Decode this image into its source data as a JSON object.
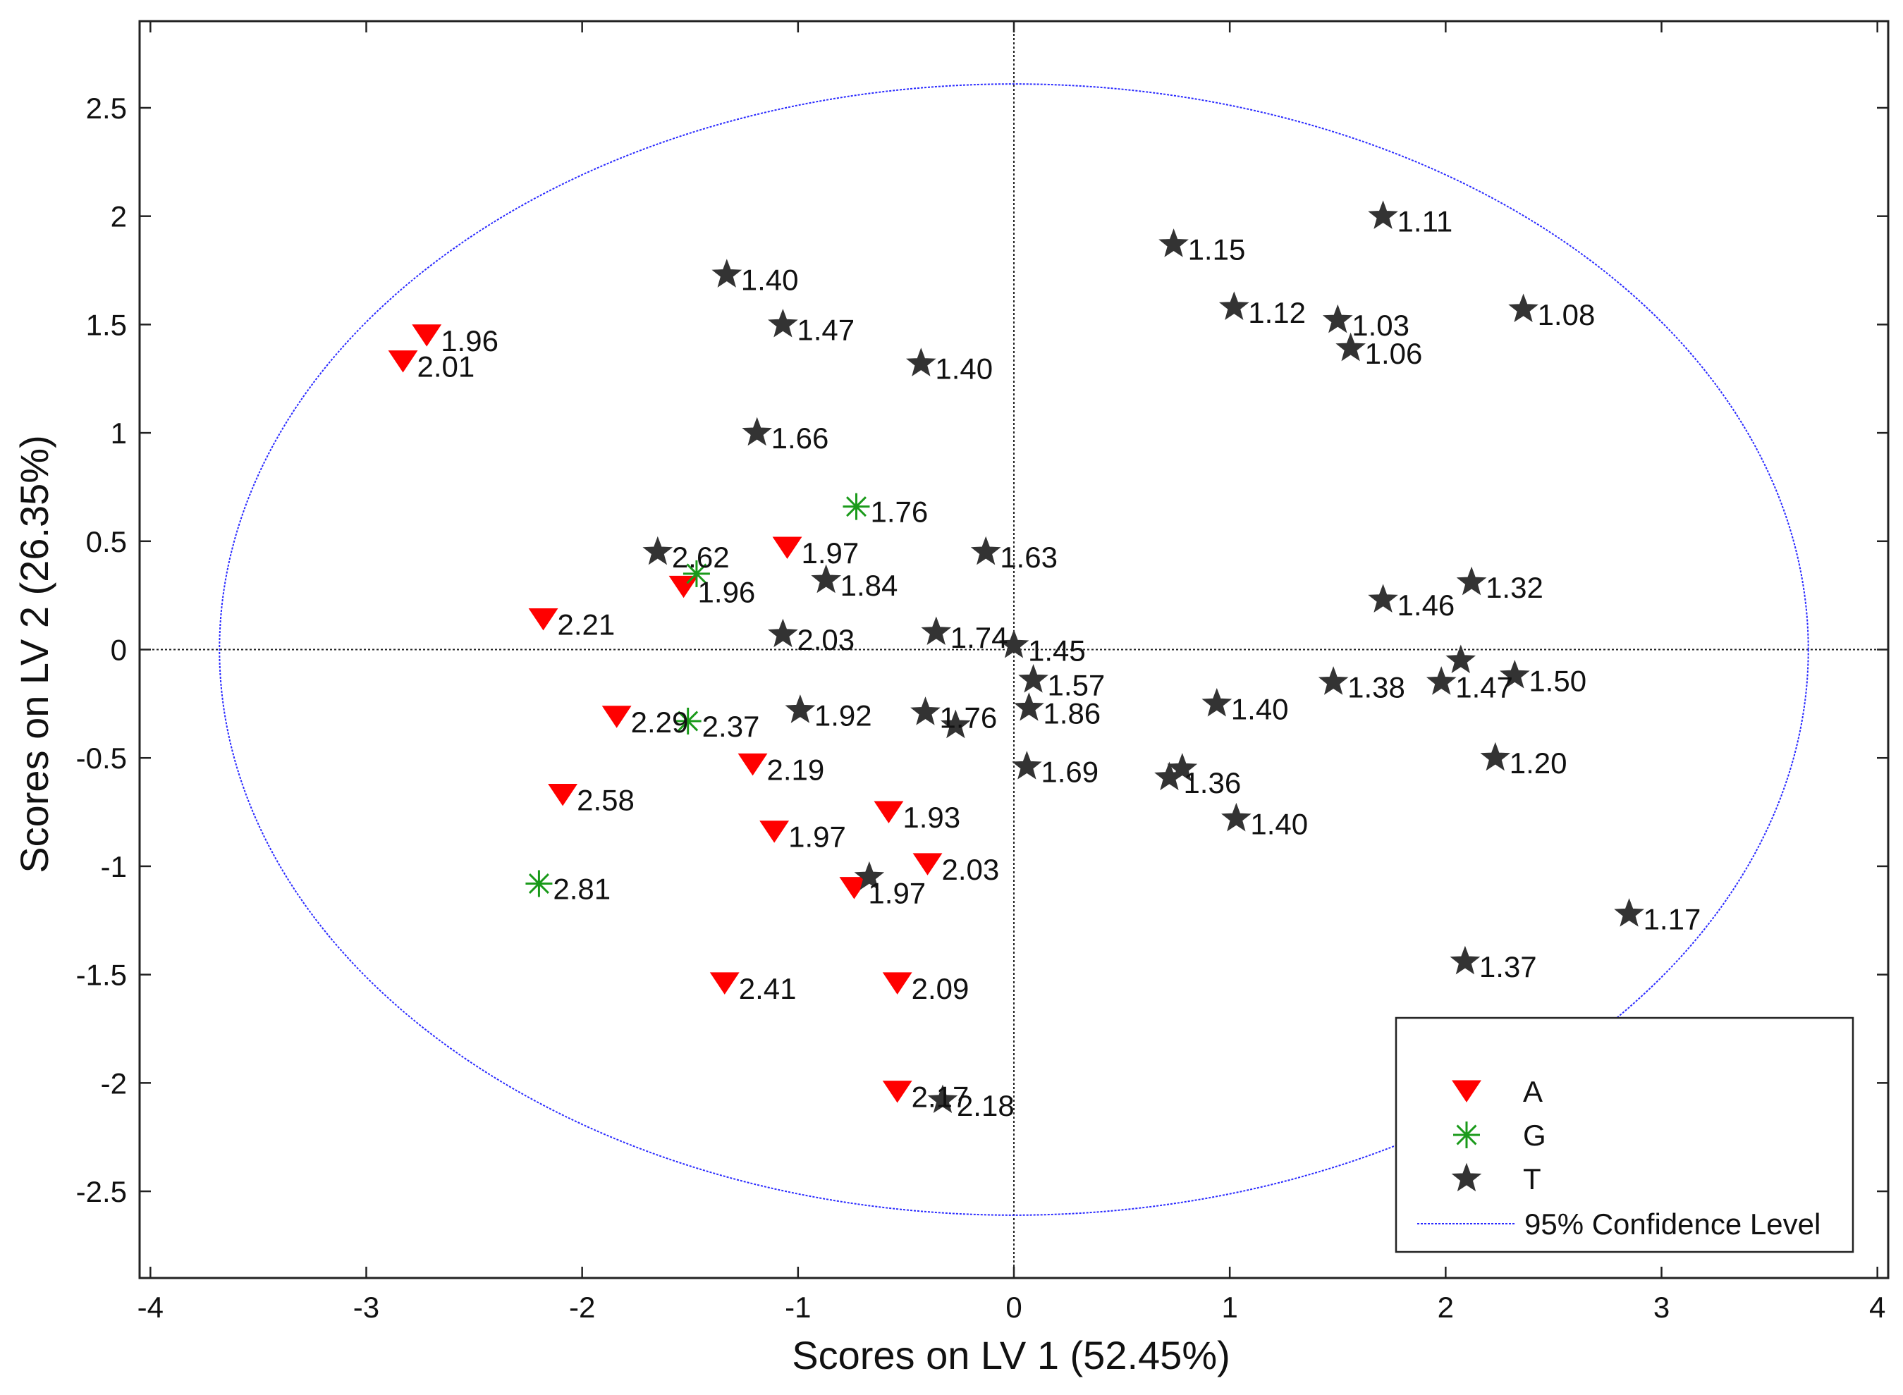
{
  "chart_data": {
    "type": "scatter",
    "xlabel": "Scores on LV 1 (52.45%)",
    "ylabel": "Scores on LV 2 (26.35%)",
    "xlim": [
      -4.05,
      4.05
    ],
    "ylim": [
      -2.9,
      2.9
    ],
    "xticks": [
      -4,
      -3,
      -2,
      -1,
      0,
      1,
      2,
      3,
      4
    ],
    "yticks": [
      -2.5,
      -2,
      -1.5,
      -1,
      -0.5,
      0,
      0.5,
      1,
      1.5,
      2,
      2.5
    ],
    "x_tick_labels": [
      "-4",
      "-3",
      "-2",
      "-1",
      "0",
      "1",
      "2",
      "3",
      "4"
    ],
    "y_tick_labels": [
      "-2.5",
      "-2",
      "-1.5",
      "-1",
      "-0.5",
      "0",
      "0.5",
      "1",
      "1.5",
      "2",
      "2.5"
    ],
    "grid": false,
    "confidence_ellipse": {
      "label": "95% Confidence Level",
      "center": [
        0,
        0
      ],
      "semi_axis_x": 3.68,
      "semi_axis_y": 2.61,
      "color": "#2a2aff"
    },
    "colors": {
      "A": "#ff0000",
      "G": "#1a9a1a",
      "T": "#333333"
    },
    "legend": {
      "position": "bottom-right",
      "entries": [
        "A",
        "G",
        "T",
        "95% Confidence Level"
      ]
    },
    "series": [
      {
        "name": "A",
        "marker": "triangle-down",
        "points": [
          {
            "x": -2.72,
            "y": 1.45,
            "label": "1.96"
          },
          {
            "x": -2.83,
            "y": 1.33,
            "label": "2.01"
          },
          {
            "x": -1.05,
            "y": 0.47,
            "label": "1.97"
          },
          {
            "x": -1.53,
            "y": 0.29,
            "label": "1.96"
          },
          {
            "x": -2.18,
            "y": 0.14,
            "label": "2.21"
          },
          {
            "x": -1.84,
            "y": -0.31,
            "label": "2.29"
          },
          {
            "x": -1.21,
            "y": -0.53,
            "label": "2.19"
          },
          {
            "x": -2.09,
            "y": -0.67,
            "label": "2.58"
          },
          {
            "x": -0.58,
            "y": -0.75,
            "label": "1.93"
          },
          {
            "x": -1.11,
            "y": -0.84,
            "label": "1.97"
          },
          {
            "x": -0.4,
            "y": -0.99,
            "label": "2.03"
          },
          {
            "x": -0.74,
            "y": -1.1,
            "label": "1.97"
          },
          {
            "x": -1.34,
            "y": -1.54,
            "label": "2.41"
          },
          {
            "x": -0.54,
            "y": -1.54,
            "label": "2.09"
          },
          {
            "x": -0.54,
            "y": -2.04,
            "label": "2.17"
          }
        ]
      },
      {
        "name": "G",
        "marker": "asterisk",
        "points": [
          {
            "x": -0.73,
            "y": 0.66,
            "label": "1.76"
          },
          {
            "x": -1.47,
            "y": 0.35,
            "label": ""
          },
          {
            "x": -1.51,
            "y": -0.33,
            "label": "2.37"
          },
          {
            "x": -2.2,
            "y": -1.08,
            "label": "2.81"
          }
        ]
      },
      {
        "name": "T",
        "marker": "pentagram",
        "points": [
          {
            "x": -1.33,
            "y": 1.73,
            "label": "1.40"
          },
          {
            "x": -1.07,
            "y": 1.5,
            "label": "1.47"
          },
          {
            "x": -0.43,
            "y": 1.32,
            "label": "1.40"
          },
          {
            "x": -1.19,
            "y": 1.0,
            "label": "1.66"
          },
          {
            "x": -0.13,
            "y": 0.45,
            "label": "1.63"
          },
          {
            "x": -1.65,
            "y": 0.45,
            "label": "2.62"
          },
          {
            "x": -0.87,
            "y": 0.32,
            "label": "1.84"
          },
          {
            "x": -1.07,
            "y": 0.07,
            "label": "2.03"
          },
          {
            "x": -0.36,
            "y": 0.08,
            "label": "1.74"
          },
          {
            "x": 0.0,
            "y": 0.02,
            "label": "1.45"
          },
          {
            "x": 0.09,
            "y": -0.14,
            "label": "1.57"
          },
          {
            "x": 0.07,
            "y": -0.27,
            "label": "1.86"
          },
          {
            "x": -0.99,
            "y": -0.28,
            "label": "1.92"
          },
          {
            "x": -0.41,
            "y": -0.29,
            "label": "1.76"
          },
          {
            "x": -0.27,
            "y": -0.35,
            "label": ""
          },
          {
            "x": 0.06,
            "y": -0.54,
            "label": "1.69"
          },
          {
            "x": 0.74,
            "y": 1.87,
            "label": "1.15"
          },
          {
            "x": 1.71,
            "y": 2.0,
            "label": "1.11"
          },
          {
            "x": 1.02,
            "y": 1.58,
            "label": "1.12"
          },
          {
            "x": 1.5,
            "y": 1.52,
            "label": "1.03"
          },
          {
            "x": 2.36,
            "y": 1.57,
            "label": "1.08"
          },
          {
            "x": 1.56,
            "y": 1.39,
            "label": "1.06"
          },
          {
            "x": 1.71,
            "y": 0.23,
            "label": "1.46"
          },
          {
            "x": 2.12,
            "y": 0.31,
            "label": "1.32"
          },
          {
            "x": 2.07,
            "y": -0.05,
            "label": ""
          },
          {
            "x": 1.48,
            "y": -0.15,
            "label": "1.38"
          },
          {
            "x": 1.98,
            "y": -0.15,
            "label": "1.47"
          },
          {
            "x": 2.32,
            "y": -0.12,
            "label": "1.50"
          },
          {
            "x": 0.94,
            "y": -0.25,
            "label": "1.40"
          },
          {
            "x": 0.78,
            "y": -0.55,
            "label": ""
          },
          {
            "x": 0.72,
            "y": -0.59,
            "label": "1.36"
          },
          {
            "x": 2.23,
            "y": -0.5,
            "label": "1.20"
          },
          {
            "x": 1.03,
            "y": -0.78,
            "label": "1.40"
          },
          {
            "x": -0.67,
            "y": -1.05,
            "label": ""
          },
          {
            "x": 2.85,
            "y": -1.22,
            "label": "1.17"
          },
          {
            "x": 2.09,
            "y": -1.44,
            "label": "1.37"
          },
          {
            "x": -0.33,
            "y": -2.08,
            "label": "2.18"
          }
        ]
      }
    ]
  }
}
